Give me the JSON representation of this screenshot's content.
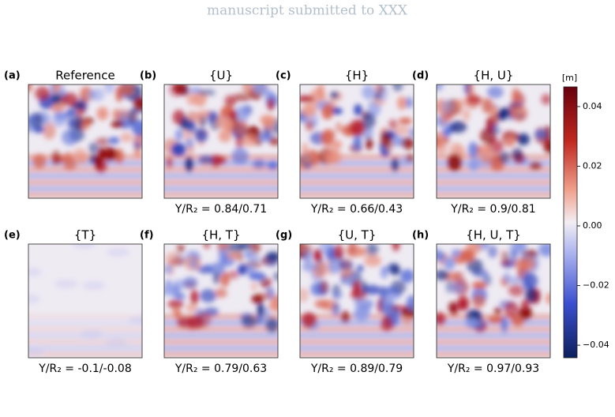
{
  "header": "manuscript submitted to XXX",
  "panels": [
    {
      "letter": "(a)",
      "title": "Reference"
    },
    {
      "letter": "(b)",
      "title": "{U}",
      "caption": "Υ/R₂ = 0.84/0.71"
    },
    {
      "letter": "(c)",
      "title": "{H}",
      "caption": "Υ/R₂ = 0.66/0.43"
    },
    {
      "letter": "(d)",
      "title": "{H, U}",
      "caption": "Υ/R₂ = 0.9/0.81"
    },
    {
      "letter": "(e)",
      "title": "{T}",
      "caption": "Υ/R₂ = -0.1/-0.08"
    },
    {
      "letter": "(f)",
      "title": "{H, T}",
      "caption": "Υ/R₂ = 0.79/0.63"
    },
    {
      "letter": "(g)",
      "title": "{U, T}",
      "caption": "Υ/R₂ = 0.89/0.79"
    },
    {
      "letter": "(h)",
      "title": "{H, U, T}",
      "caption": "Υ/R₂ = 0.97/0.93"
    }
  ],
  "colorbar": {
    "label": "[m]",
    "lim": [
      -0.0442,
      0.0466
    ],
    "ticks": [
      0.04,
      0.02,
      {
        "value": 0,
        "label": "0.00"
      },
      {
        "value": -0.02,
        "label": "−0.02"
      },
      {
        "value": -0.04,
        "label": "−0.04"
      }
    ]
  }
}
